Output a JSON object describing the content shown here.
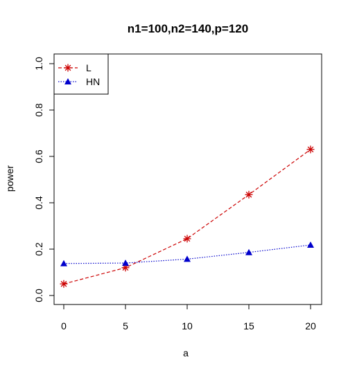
{
  "chart_data": {
    "type": "line",
    "title": "n1=100,n2=140,p=120",
    "xlabel": "a",
    "ylabel": "power",
    "xlim": [
      0,
      20
    ],
    "ylim": [
      0,
      1
    ],
    "x_ticks": [
      0,
      5,
      10,
      15,
      20
    ],
    "y_ticks": [
      0.0,
      0.2,
      0.4,
      0.6,
      0.8,
      1.0
    ],
    "x_tick_labels": [
      "0",
      "5",
      "10",
      "15",
      "20"
    ],
    "y_tick_labels": [
      "0.0",
      "0.2",
      "0.4",
      "0.6",
      "0.8",
      "1.0"
    ],
    "grid": false,
    "legend_position": "top-left",
    "x": [
      0,
      5,
      10,
      15,
      20
    ],
    "series": [
      {
        "name": "L",
        "values": [
          0.05,
          0.12,
          0.245,
          0.435,
          0.63
        ],
        "color": "#cc0000",
        "marker": "asterisk",
        "line_style": "dashed"
      },
      {
        "name": "HN",
        "values": [
          0.138,
          0.14,
          0.157,
          0.186,
          0.218
        ],
        "color": "#0000cc",
        "marker": "triangle",
        "line_style": "dotted"
      }
    ]
  }
}
